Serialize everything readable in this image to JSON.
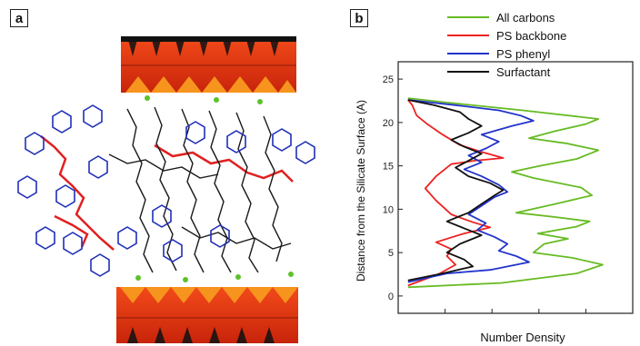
{
  "panels": {
    "a": "a",
    "b": "b"
  },
  "chart_data": {
    "type": "line",
    "xlabel": "Number Density",
    "ylabel": "Distance from the Silicate Surface (A)",
    "ylim": [
      -2,
      27
    ],
    "yticks": [
      0,
      5,
      10,
      15,
      20,
      25
    ],
    "x_ticks_labeled": false,
    "legend_position": "top",
    "series": [
      {
        "name": "All carbons",
        "color": "#66bb22",
        "points": [
          [
            0.02,
            1
          ],
          [
            0.45,
            1.5
          ],
          [
            0.8,
            2.6
          ],
          [
            0.92,
            3.6
          ],
          [
            0.78,
            4.4
          ],
          [
            0.6,
            5.0
          ],
          [
            0.65,
            6.0
          ],
          [
            0.76,
            6.6
          ],
          [
            0.62,
            7.2
          ],
          [
            0.8,
            8.0
          ],
          [
            0.86,
            8.6
          ],
          [
            0.7,
            9.1
          ],
          [
            0.52,
            9.6
          ],
          [
            0.7,
            10.6
          ],
          [
            0.87,
            11.6
          ],
          [
            0.82,
            12.5
          ],
          [
            0.6,
            13.6
          ],
          [
            0.5,
            14.3
          ],
          [
            0.63,
            15.0
          ],
          [
            0.8,
            15.8
          ],
          [
            0.9,
            16.8
          ],
          [
            0.75,
            17.6
          ],
          [
            0.58,
            18.2
          ],
          [
            0.7,
            19.0
          ],
          [
            0.84,
            19.8
          ],
          [
            0.9,
            20.4
          ],
          [
            0.55,
            21.4
          ],
          [
            0.2,
            22.3
          ],
          [
            0.02,
            22.8
          ]
        ]
      },
      {
        "name": "PS backbone",
        "color": "#ee2222",
        "points": [
          [
            0.02,
            1.2
          ],
          [
            0.16,
            2.5
          ],
          [
            0.24,
            3.6
          ],
          [
            0.2,
            4.6
          ],
          [
            0.22,
            5.4
          ],
          [
            0.15,
            6.2
          ],
          [
            0.28,
            7.2
          ],
          [
            0.4,
            7.9
          ],
          [
            0.32,
            8.5
          ],
          [
            0.22,
            9.4
          ],
          [
            0.15,
            11.0
          ],
          [
            0.1,
            12.4
          ],
          [
            0.15,
            13.8
          ],
          [
            0.22,
            15.2
          ],
          [
            0.33,
            15.6
          ],
          [
            0.46,
            15.9
          ],
          [
            0.36,
            16.6
          ],
          [
            0.26,
            17.4
          ],
          [
            0.18,
            18.6
          ],
          [
            0.11,
            19.8
          ],
          [
            0.06,
            20.8
          ],
          [
            0.04,
            22.0
          ],
          [
            0.02,
            22.6
          ]
        ]
      },
      {
        "name": "PS phenyl",
        "color": "#2233cc",
        "points": [
          [
            0.02,
            1.6
          ],
          [
            0.2,
            2.6
          ],
          [
            0.4,
            3.0
          ],
          [
            0.58,
            3.9
          ],
          [
            0.52,
            4.6
          ],
          [
            0.44,
            5.2
          ],
          [
            0.48,
            6.0
          ],
          [
            0.42,
            6.8
          ],
          [
            0.34,
            7.6
          ],
          [
            0.38,
            8.4
          ],
          [
            0.3,
            9.4
          ],
          [
            0.36,
            10.4
          ],
          [
            0.42,
            11.4
          ],
          [
            0.48,
            12.0
          ],
          [
            0.44,
            12.8
          ],
          [
            0.36,
            13.8
          ],
          [
            0.28,
            14.6
          ],
          [
            0.36,
            15.4
          ],
          [
            0.3,
            16.2
          ],
          [
            0.38,
            17.0
          ],
          [
            0.44,
            17.8
          ],
          [
            0.36,
            18.6
          ],
          [
            0.5,
            19.6
          ],
          [
            0.6,
            20.2
          ],
          [
            0.54,
            20.8
          ],
          [
            0.44,
            21.4
          ],
          [
            0.24,
            22.0
          ],
          [
            0.02,
            22.6
          ]
        ]
      },
      {
        "name": "Surfactant",
        "color": "#111111",
        "points": [
          [
            0.02,
            1.8
          ],
          [
            0.18,
            2.6
          ],
          [
            0.32,
            3.4
          ],
          [
            0.28,
            4.2
          ],
          [
            0.2,
            5.0
          ],
          [
            0.26,
            6.0
          ],
          [
            0.36,
            7.0
          ],
          [
            0.28,
            7.8
          ],
          [
            0.2,
            8.6
          ],
          [
            0.3,
            9.6
          ],
          [
            0.36,
            10.6
          ],
          [
            0.42,
            11.6
          ],
          [
            0.46,
            12.2
          ],
          [
            0.4,
            13.0
          ],
          [
            0.3,
            13.8
          ],
          [
            0.24,
            14.8
          ],
          [
            0.3,
            15.6
          ],
          [
            0.36,
            16.4
          ],
          [
            0.28,
            17.2
          ],
          [
            0.22,
            18.0
          ],
          [
            0.3,
            18.8
          ],
          [
            0.36,
            19.6
          ],
          [
            0.3,
            20.4
          ],
          [
            0.26,
            21.2
          ],
          [
            0.14,
            22.0
          ],
          [
            0.02,
            22.6
          ]
        ]
      }
    ]
  }
}
